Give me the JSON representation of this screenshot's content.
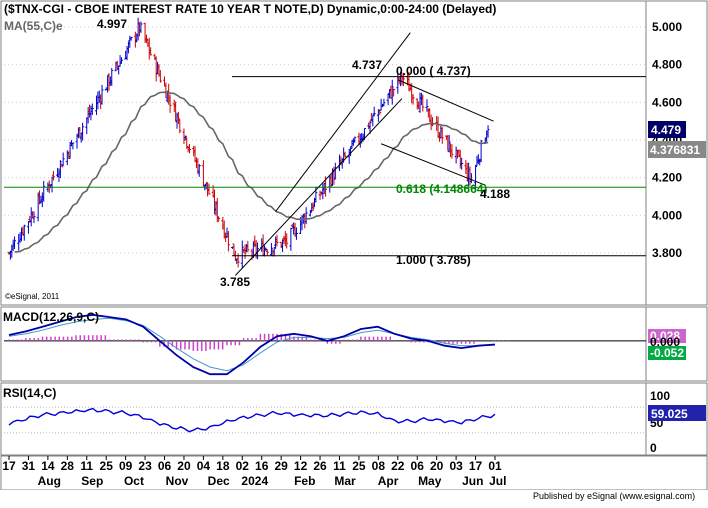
{
  "title": "($TNX-CGI - CBOE INTEREST RATE 10 YEAR T NOTE,D) Dynamic,0:00-24:00 (Delayed)",
  "ma_label": "MA(55,C)e",
  "copyright": "©eSignal, 2011",
  "publisher": "Published by eSignal (www.esignal.com)",
  "colors": {
    "bar_up": "#0000cc",
    "bar_down": "#cc0000",
    "ma_line": "#666666",
    "fib_line": "#000000",
    "fib_618_line": "#008800",
    "fib_618_text": "#008800",
    "macd_line": "#0000aa",
    "signal_line": "#4499cc",
    "histogram": "#cc44cc",
    "rsi_line": "#0000dd",
    "price_badge_bg": "#000066",
    "ma_badge_bg": "#888888",
    "macd_badge_bg": "#cc66cc",
    "signal_badge_bg": "#00aa44",
    "rsi_badge_bg": "#2222aa"
  },
  "chart_data": [
    {
      "type": "candlestick",
      "panel": "price",
      "title": "($TNX-CGI - CBOE INTEREST RATE 10 YEAR T NOTE,D) Dynamic,0:00-24:00 (Delayed)",
      "ylim": [
        3.55,
        5.08
      ],
      "y_ticks": [
        "5.000",
        "4.800",
        "4.600",
        "4.400",
        "4.200",
        "4.000",
        "3.800"
      ],
      "y_tick_values": [
        5.0,
        4.8,
        4.6,
        4.4,
        4.2,
        4.0,
        3.8
      ],
      "x_tick_labels": [
        "17",
        "31",
        "14",
        "28",
        "11",
        "25",
        "09",
        "23",
        "06",
        "20",
        "04",
        "18",
        "02",
        "16",
        "29",
        "12",
        "26",
        "11",
        "25",
        "08",
        "22",
        "06",
        "20",
        "03",
        "17",
        "01"
      ],
      "month_labels": [
        "Aug",
        "Sep",
        "Oct",
        "Nov",
        "Dec",
        "2024",
        "Feb",
        "Mar",
        "Apr",
        "May",
        "Jun",
        "Jul"
      ],
      "pivots": [
        {
          "date": "2023-07-17",
          "value": 3.8
        },
        {
          "date": "2023-10-19",
          "value": 4.997
        },
        {
          "date": "2023-12-27",
          "value": 3.785
        },
        {
          "date": "2024-02-02",
          "value": 3.86
        },
        {
          "date": "2024-04-25",
          "value": 4.737
        },
        {
          "date": "2024-06-14",
          "value": 4.188
        },
        {
          "date": "2024-06-26",
          "value": 4.479
        }
      ],
      "annotations": [
        "4.997",
        "4.737",
        "3.785",
        "4.188"
      ],
      "fib_levels": [
        {
          "label": "0.000 ( 4.737)",
          "value": 4.737
        },
        {
          "label": "0.618 (4.148664)",
          "value": 4.148664
        },
        {
          "label": "1.000 ( 3.785)",
          "value": 3.785
        }
      ],
      "last_price": "4.479",
      "ma_value": "4.376831"
    },
    {
      "type": "line",
      "panel": "macd",
      "label": "MACD(12,26,9,C)",
      "series": [
        {
          "name": "MACD",
          "values": [
            0.05,
            0.08,
            0.12,
            0.16,
            0.2,
            0.22,
            0.2,
            0.18,
            0.12,
            0.0,
            -0.12,
            -0.22,
            -0.28,
            -0.28,
            -0.18,
            -0.05,
            0.04,
            0.06,
            0.04,
            0.0,
            0.04,
            0.1,
            0.12,
            0.06,
            0.02,
            0.0,
            -0.04,
            -0.06,
            -0.04,
            -0.03
          ]
        },
        {
          "name": "Signal",
          "values": [
            0.04,
            0.06,
            0.09,
            0.13,
            0.16,
            0.18,
            0.19,
            0.17,
            0.13,
            0.04,
            -0.06,
            -0.15,
            -0.22,
            -0.25,
            -0.2,
            -0.1,
            -0.01,
            0.03,
            0.03,
            0.02,
            0.03,
            0.07,
            0.09,
            0.06,
            0.03,
            0.01,
            -0.02,
            -0.04,
            -0.04,
            -0.035
          ]
        }
      ],
      "values_shown": [
        "0.028",
        "-0.052"
      ],
      "y_ticks": [
        "0.000"
      ]
    },
    {
      "type": "line",
      "panel": "rsi",
      "label": "RSI(14,C)",
      "series": [
        {
          "name": "RSI",
          "values": [
            42,
            50,
            58,
            62,
            66,
            68,
            64,
            60,
            52,
            42,
            36,
            34,
            40,
            50,
            56,
            58,
            60,
            56,
            55,
            56,
            60,
            64,
            62,
            50,
            48,
            50,
            46,
            44,
            52,
            59.025
          ]
        }
      ],
      "values_shown": [
        "59.025"
      ],
      "y_ticks": [
        "100",
        "50",
        "0"
      ]
    }
  ]
}
